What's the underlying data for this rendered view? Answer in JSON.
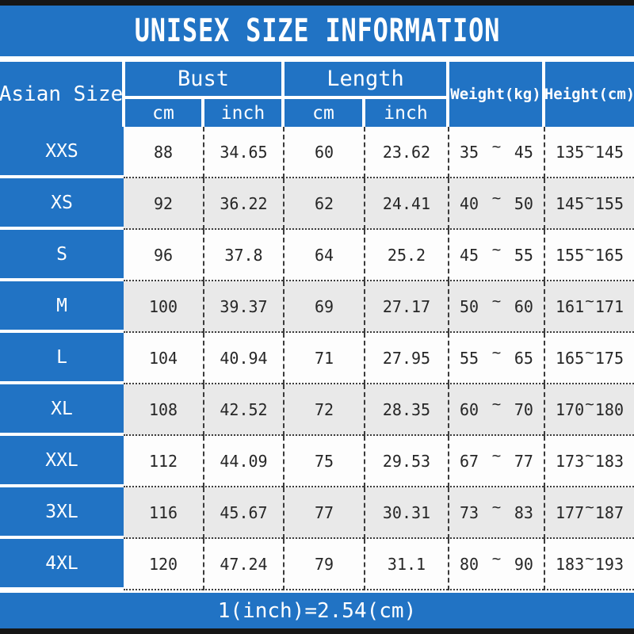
{
  "title": "UNISEX SIZE INFORMATION",
  "footer_note": "1(inch)=2.54(cm)",
  "colors": {
    "accent_blue": "#2173c4",
    "bar_black": "#161616",
    "row_white": "#fdfdfd",
    "row_alt_gray": "#e9e9e9",
    "body_text": "#262626",
    "header_text": "#ffffff"
  },
  "header": {
    "corner": "Asian Size",
    "bust": "Bust",
    "length": "Length",
    "bust_cm": "cm",
    "bust_inch": "inch",
    "length_cm": "cm",
    "length_inch": "inch",
    "weight": "Weight(kg)",
    "height": "Height(cm)",
    "tilde": "~"
  },
  "rows": [
    {
      "size": "XXS",
      "bust_cm": "88",
      "bust_inch": "34.65",
      "len_cm": "60",
      "len_inch": "23.62",
      "w_min": "35",
      "w_max": "45",
      "h_min": "135",
      "h_max": "145"
    },
    {
      "size": "XS",
      "bust_cm": "92",
      "bust_inch": "36.22",
      "len_cm": "62",
      "len_inch": "24.41",
      "w_min": "40",
      "w_max": "50",
      "h_min": "145",
      "h_max": "155"
    },
    {
      "size": "S",
      "bust_cm": "96",
      "bust_inch": "37.8",
      "len_cm": "64",
      "len_inch": "25.2",
      "w_min": "45",
      "w_max": "55",
      "h_min": "155",
      "h_max": "165"
    },
    {
      "size": "M",
      "bust_cm": "100",
      "bust_inch": "39.37",
      "len_cm": "69",
      "len_inch": "27.17",
      "w_min": "50",
      "w_max": "60",
      "h_min": "161",
      "h_max": "171"
    },
    {
      "size": "L",
      "bust_cm": "104",
      "bust_inch": "40.94",
      "len_cm": "71",
      "len_inch": "27.95",
      "w_min": "55",
      "w_max": "65",
      "h_min": "165",
      "h_max": "175"
    },
    {
      "size": "XL",
      "bust_cm": "108",
      "bust_inch": "42.52",
      "len_cm": "72",
      "len_inch": "28.35",
      "w_min": "60",
      "w_max": "70",
      "h_min": "170",
      "h_max": "180"
    },
    {
      "size": "XXL",
      "bust_cm": "112",
      "bust_inch": "44.09",
      "len_cm": "75",
      "len_inch": "29.53",
      "w_min": "67",
      "w_max": "77",
      "h_min": "173",
      "h_max": "183"
    },
    {
      "size": "3XL",
      "bust_cm": "116",
      "bust_inch": "45.67",
      "len_cm": "77",
      "len_inch": "30.31",
      "w_min": "73",
      "w_max": "83",
      "h_min": "177",
      "h_max": "187"
    },
    {
      "size": "4XL",
      "bust_cm": "120",
      "bust_inch": "47.24",
      "len_cm": "79",
      "len_inch": "31.1",
      "w_min": "80",
      "w_max": "90",
      "h_min": "183",
      "h_max": "193"
    }
  ],
  "chart_data": {
    "type": "table",
    "title": "UNISEX SIZE INFORMATION",
    "columns": [
      "Asian Size",
      "Bust cm",
      "Bust inch",
      "Length cm",
      "Length inch",
      "Weight(kg)",
      "Height(cm)"
    ],
    "rows": [
      [
        "XXS",
        "88",
        "34.65",
        "60",
        "23.62",
        "35~45",
        "135~145"
      ],
      [
        "XS",
        "92",
        "36.22",
        "62",
        "24.41",
        "40~50",
        "145~155"
      ],
      [
        "S",
        "96",
        "37.8",
        "64",
        "25.2",
        "45~55",
        "155~165"
      ],
      [
        "M",
        "100",
        "39.37",
        "69",
        "27.17",
        "50~60",
        "161~171"
      ],
      [
        "L",
        "104",
        "40.94",
        "71",
        "27.95",
        "55~65",
        "165~175"
      ],
      [
        "XL",
        "108",
        "42.52",
        "72",
        "28.35",
        "60~70",
        "170~180"
      ],
      [
        "XXL",
        "112",
        "44.09",
        "75",
        "29.53",
        "67~77",
        "173~183"
      ],
      [
        "3XL",
        "116",
        "45.67",
        "77",
        "30.31",
        "73~83",
        "177~187"
      ],
      [
        "4XL",
        "120",
        "47.24",
        "79",
        "31.1",
        "80~90",
        "183~193"
      ]
    ],
    "footnote": "1(inch)=2.54(cm)"
  }
}
